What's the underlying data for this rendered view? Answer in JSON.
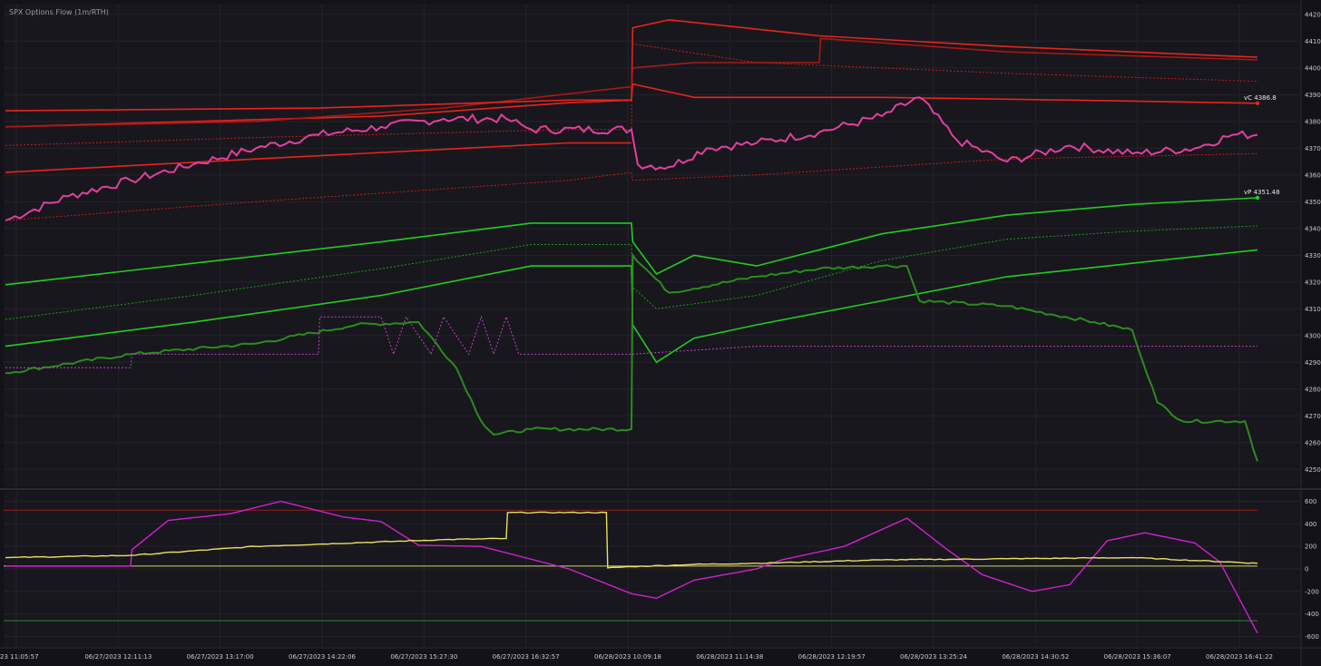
{
  "chart_data": [
    {
      "type": "line",
      "title": "SPX Options Flow (1m/RTH)",
      "ylim": [
        4245,
        4422
      ],
      "y_ticks": [
        4250,
        4260,
        4270,
        4280,
        4290,
        4300,
        4310,
        4320,
        4330,
        4340,
        4350,
        4360,
        4370,
        4380,
        4390,
        4400,
        4410,
        4420
      ],
      "x_tick_labels": [
        "23 11:05:57",
        "06/27/2023 12:11:13",
        "06/27/2023 13:17:00",
        "06/27/2023 14:22:06",
        "06/27/2023 15:27:30",
        "06/27/2023 16:32:57",
        "06/28/2023 10:09:18",
        "06/28/2023 11:14:38",
        "06/28/2023 12:19:57",
        "06/28/2023 13:25:24",
        "06/28/2023 14:30:52",
        "06/28/2023 15:36:07",
        "06/28/2023 16:41:22"
      ],
      "grid": true,
      "annotations": [
        {
          "text": "vC 4386.8",
          "value": 4386.8,
          "color": "#e8231c"
        },
        {
          "text": "vP 4351.48",
          "value": 4351.48,
          "color": "#22cc22"
        }
      ],
      "series": [
        {
          "color": "#e8231c",
          "style": "solid",
          "points": [
            [
              0,
              4378
            ],
            [
              0.3,
              4382
            ],
            [
              0.45,
              4387
            ],
            [
              0.5,
              4388
            ],
            [
              0.501,
              4415
            ],
            [
              0.53,
              4418
            ],
            [
              0.65,
              4412
            ],
            [
              0.8,
              4408
            ],
            [
              1,
              4404
            ]
          ]
        },
        {
          "color": "#a81818",
          "style": "solid",
          "points": [
            [
              0,
              4378
            ],
            [
              0.2,
              4380
            ],
            [
              0.35,
              4385
            ],
            [
              0.5,
              4393
            ],
            [
              0.501,
              4400
            ],
            [
              0.55,
              4402
            ],
            [
              0.65,
              4402
            ],
            [
              0.651,
              4411
            ],
            [
              0.8,
              4406
            ],
            [
              1,
              4403
            ]
          ]
        },
        {
          "color": "#e8231c",
          "style": "solid",
          "points": [
            [
              0,
              4384
            ],
            [
              0.25,
              4385
            ],
            [
              0.45,
              4388
            ],
            [
              0.5,
              4388
            ],
            [
              0.501,
              4394
            ],
            [
              0.55,
              4389
            ],
            [
              0.7,
              4389
            ],
            [
              0.85,
              4388
            ],
            [
              1,
              4386.8
            ]
          ]
        },
        {
          "color": "#e8231c",
          "style": "solid",
          "points": [
            [
              0,
              4361
            ],
            [
              0.2,
              4366
            ],
            [
              0.45,
              4372
            ],
            [
              0.5,
              4372
            ]
          ]
        },
        {
          "color": "#c21c1c",
          "style": "dotted",
          "points": [
            [
              0,
              4371
            ],
            [
              0.2,
              4374
            ],
            [
              0.45,
              4377
            ],
            [
              0.5,
              4377
            ],
            [
              0.501,
              4409
            ],
            [
              0.6,
              4402
            ],
            [
              0.8,
              4398
            ],
            [
              1,
              4395
            ]
          ]
        },
        {
          "color": "#c21c1c",
          "style": "dotted",
          "points": [
            [
              0,
              4343
            ],
            [
              0.2,
              4350
            ],
            [
              0.45,
              4358
            ],
            [
              0.5,
              4361
            ],
            [
              0.501,
              4358
            ],
            [
              0.6,
              4360
            ],
            [
              0.8,
              4366
            ],
            [
              1,
              4368
            ]
          ]
        },
        {
          "color": "#e0409e",
          "style": "solid",
          "points": [
            [
              0,
              4343
            ],
            [
              0.05,
              4352
            ],
            [
              0.1,
              4358
            ],
            [
              0.15,
              4364
            ],
            [
              0.2,
              4370
            ],
            [
              0.25,
              4375
            ],
            [
              0.3,
              4378
            ],
            [
              0.35,
              4381
            ],
            [
              0.4,
              4381
            ],
            [
              0.42,
              4377
            ],
            [
              0.5,
              4377
            ],
            [
              0.505,
              4364
            ],
            [
              0.53,
              4363
            ],
            [
              0.56,
              4370
            ],
            [
              0.6,
              4372
            ],
            [
              0.65,
              4376
            ],
            [
              0.7,
              4382
            ],
            [
              0.73,
              4389
            ],
            [
              0.76,
              4373
            ],
            [
              0.8,
              4365
            ],
            [
              0.85,
              4371
            ],
            [
              0.9,
              4368
            ],
            [
              0.95,
              4370
            ],
            [
              0.98,
              4375
            ],
            [
              1,
              4375
            ]
          ]
        },
        {
          "color": "#22cc22",
          "style": "solid",
          "points": [
            [
              0,
              4319
            ],
            [
              0.15,
              4327
            ],
            [
              0.3,
              4335
            ],
            [
              0.42,
              4342
            ],
            [
              0.5,
              4342
            ],
            [
              0.501,
              4335
            ],
            [
              0.52,
              4323
            ],
            [
              0.55,
              4330
            ],
            [
              0.6,
              4326
            ],
            [
              0.7,
              4338
            ],
            [
              0.8,
              4345
            ],
            [
              0.9,
              4349
            ],
            [
              1,
              4351.48
            ]
          ]
        },
        {
          "color": "#22cc22",
          "style": "solid",
          "points": [
            [
              0,
              4296
            ],
            [
              0.15,
              4305
            ],
            [
              0.3,
              4315
            ],
            [
              0.42,
              4326
            ],
            [
              0.5,
              4326
            ],
            [
              0.501,
              4304
            ],
            [
              0.52,
              4290
            ],
            [
              0.55,
              4299
            ],
            [
              0.6,
              4304
            ],
            [
              0.7,
              4313
            ],
            [
              0.8,
              4322
            ],
            [
              0.9,
              4327
            ],
            [
              1,
              4332
            ]
          ]
        },
        {
          "color": "#1a9a1a",
          "style": "dotted",
          "points": [
            [
              0,
              4306
            ],
            [
              0.15,
              4315
            ],
            [
              0.3,
              4325
            ],
            [
              0.42,
              4334
            ],
            [
              0.5,
              4334
            ],
            [
              0.501,
              4318
            ],
            [
              0.52,
              4310
            ],
            [
              0.6,
              4315
            ],
            [
              0.7,
              4328
            ],
            [
              0.8,
              4336
            ],
            [
              0.9,
              4339
            ],
            [
              1,
              4341
            ]
          ]
        },
        {
          "color": "#2a8c1e",
          "style": "solid",
          "points": [
            [
              0,
              4286
            ],
            [
              0.1,
              4293
            ],
            [
              0.2,
              4297
            ],
            [
              0.28,
              4304
            ],
            [
              0.33,
              4305
            ],
            [
              0.36,
              4288
            ],
            [
              0.38,
              4268
            ],
            [
              0.39,
              4263
            ],
            [
              0.42,
              4265
            ],
            [
              0.5,
              4265
            ],
            [
              0.501,
              4330
            ],
            [
              0.53,
              4316
            ],
            [
              0.6,
              4322
            ],
            [
              0.65,
              4325
            ],
            [
              0.7,
              4326
            ],
            [
              0.72,
              4326
            ],
            [
              0.73,
              4313
            ],
            [
              0.8,
              4311
            ],
            [
              0.87,
              4305
            ],
            [
              0.9,
              4302
            ],
            [
              0.92,
              4275
            ],
            [
              0.94,
              4268
            ],
            [
              0.99,
              4268
            ],
            [
              1,
              4253
            ]
          ]
        },
        {
          "color": "#c040c8",
          "style": "dotted",
          "points": [
            [
              0,
              4288
            ],
            [
              0.1,
              4288
            ],
            [
              0.101,
              4293
            ],
            [
              0.25,
              4293
            ],
            [
              0.251,
              4307
            ],
            [
              0.3,
              4307
            ],
            [
              0.31,
              4293
            ],
            [
              0.32,
              4307
            ],
            [
              0.34,
              4293
            ],
            [
              0.35,
              4307
            ],
            [
              0.37,
              4293
            ],
            [
              0.38,
              4307
            ],
            [
              0.39,
              4293
            ],
            [
              0.4,
              4307
            ],
            [
              0.41,
              4293
            ],
            [
              0.5,
              4293
            ],
            [
              0.6,
              4296
            ],
            [
              1,
              4296
            ]
          ]
        }
      ]
    },
    {
      "type": "line",
      "ylim": [
        -660,
        660
      ],
      "y_ticks": [
        600,
        400,
        200,
        0,
        -200,
        -400,
        -600
      ],
      "hlines": [
        {
          "value": 520,
          "color": "#8a2020"
        },
        {
          "value": 25,
          "color": "#d4d466"
        },
        {
          "value": -460,
          "color": "#2a8a2a"
        }
      ],
      "series": [
        {
          "color": "#d020d0",
          "style": "solid",
          "points": [
            [
              0,
              25
            ],
            [
              0.1,
              25
            ],
            [
              0.101,
              170
            ],
            [
              0.13,
              430
            ],
            [
              0.18,
              490
            ],
            [
              0.22,
              600
            ],
            [
              0.27,
              460
            ],
            [
              0.3,
              420
            ],
            [
              0.33,
              210
            ],
            [
              0.38,
              200
            ],
            [
              0.45,
              0
            ],
            [
              0.5,
              -220
            ],
            [
              0.52,
              -260
            ],
            [
              0.55,
              -100
            ],
            [
              0.6,
              0
            ],
            [
              0.62,
              80
            ],
            [
              0.67,
              200
            ],
            [
              0.72,
              450
            ],
            [
              0.75,
              190
            ],
            [
              0.78,
              -50
            ],
            [
              0.82,
              -200
            ],
            [
              0.85,
              -140
            ],
            [
              0.88,
              250
            ],
            [
              0.91,
              320
            ],
            [
              0.95,
              230
            ],
            [
              0.97,
              60
            ],
            [
              1,
              -570
            ]
          ]
        },
        {
          "color": "#e8e060",
          "style": "solid",
          "points": [
            [
              0,
              100
            ],
            [
              0.1,
              120
            ],
            [
              0.2,
              200
            ],
            [
              0.35,
              260
            ],
            [
              0.4,
              270
            ],
            [
              0.401,
              500
            ],
            [
              0.48,
              500
            ],
            [
              0.481,
              10
            ],
            [
              0.5,
              20
            ],
            [
              0.55,
              40
            ],
            [
              0.6,
              50
            ],
            [
              0.7,
              80
            ],
            [
              0.8,
              90
            ],
            [
              0.9,
              100
            ],
            [
              1,
              50
            ]
          ]
        }
      ]
    }
  ]
}
